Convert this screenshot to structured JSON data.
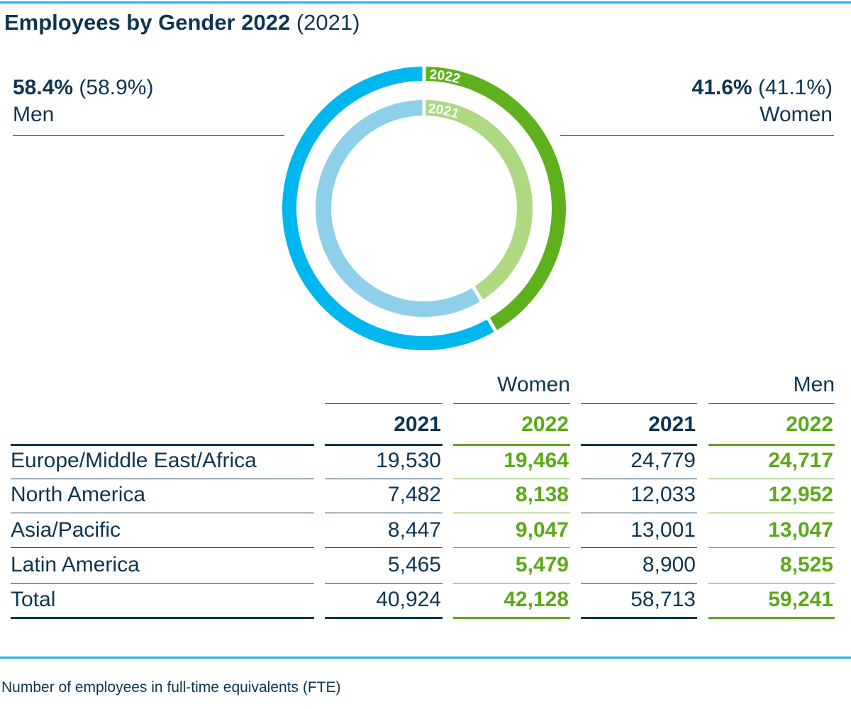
{
  "title": {
    "bold": "Employees by Gender 2022",
    "light": "(2021)"
  },
  "men": {
    "pct_2022": "58.4%",
    "pct_2021": "(58.9%)",
    "label": "Men"
  },
  "women": {
    "pct_2022": "41.6%",
    "pct_2021": "(41.1%)",
    "label": "Women"
  },
  "colors": {
    "navy": "#0d3550",
    "men_2022": "#00b6ee",
    "men_2021": "#8ed0ea",
    "women_2022": "#5eb01c",
    "women_2021": "#aed882",
    "table_green": "#5ea81a"
  },
  "chart_data": [
    {
      "type": "pie",
      "rings": [
        {
          "name": "2022",
          "slices": [
            {
              "label": "Men",
              "value": 58.4
            },
            {
              "label": "Women",
              "value": 41.6
            }
          ]
        },
        {
          "name": "2021",
          "slices": [
            {
              "label": "Men",
              "value": 58.9
            },
            {
              "label": "Women",
              "value": 41.1
            }
          ]
        }
      ]
    },
    {
      "type": "table",
      "group_headers": [
        "Women",
        "Men"
      ],
      "year_headers": [
        "2021",
        "2022",
        "2021",
        "2022"
      ],
      "rows": [
        {
          "label": "Europe/Middle East/Africa",
          "values": [
            "19,530",
            "19,464",
            "24,779",
            "24,717"
          ]
        },
        {
          "label": "North America",
          "values": [
            "7,482",
            "8,138",
            "12,033",
            "12,952"
          ]
        },
        {
          "label": "Asia/Pacific",
          "values": [
            "8,447",
            "9,047",
            "13,001",
            "13,047"
          ]
        },
        {
          "label": "Latin America",
          "values": [
            "5,465",
            "5,479",
            "8,900",
            "8,525"
          ]
        },
        {
          "label": "Total",
          "values": [
            "40,924",
            "42,128",
            "58,713",
            "59,241"
          ]
        }
      ]
    }
  ],
  "footnote": "Number of employees in full-time equivalents (FTE)"
}
